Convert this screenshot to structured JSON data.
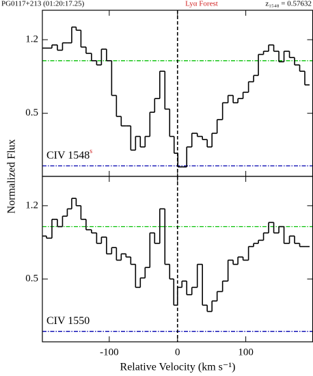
{
  "figure": {
    "title_left": "PG0117+213 (01:20:17.25)",
    "title_center": "Lyα Forest",
    "title_right": "z₁₅₄₈ = 0.57632",
    "ylabel": "Normalized Flux"
  },
  "chart_data": [
    {
      "type": "step",
      "label": "CIV 1548",
      "label_flag": "s",
      "color": "#000000",
      "xlim": [
        -198,
        198
      ],
      "ylim": [
        -0.1,
        1.48
      ],
      "xticks": [
        -100,
        0,
        100
      ],
      "yticks": [
        0.5,
        1.2
      ],
      "marker_x": 0,
      "reference_lines": [
        {
          "value": 1.0,
          "color": "#00c000"
        },
        {
          "value": 0,
          "color": "#0000b0"
        }
      ],
      "x": [
        -196,
        -188,
        -180,
        -172,
        -165,
        -158,
        -152,
        -145,
        -138,
        -130,
        -122,
        -115,
        -108,
        -100,
        -93,
        -86,
        -79,
        -72,
        -65,
        -58,
        -51,
        -44,
        -37,
        -30,
        -22,
        -15,
        -8,
        -2,
        3,
        10,
        17,
        25,
        33,
        40,
        47,
        54,
        62,
        70,
        78,
        85,
        92,
        100,
        108,
        115,
        122,
        130,
        137,
        145,
        152,
        160,
        168,
        175,
        183,
        190
      ],
      "values": [
        1.12,
        1.12,
        1.15,
        1.1,
        1.17,
        1.17,
        1.32,
        1.29,
        1.13,
        1.07,
        1.0,
        0.96,
        1.11,
        1.0,
        0.67,
        0.47,
        0.38,
        0.38,
        0.15,
        0.28,
        0.18,
        0.28,
        0.51,
        0.64,
        0.9,
        0.54,
        0.28,
        0.12,
        -0.01,
        -0.01,
        0.18,
        0.31,
        0.28,
        0.25,
        0.18,
        0.31,
        0.44,
        0.6,
        0.67,
        0.6,
        0.64,
        0.7,
        0.8,
        0.86,
        1.06,
        1.09,
        1.15,
        1.09,
        0.99,
        1.09,
        1.03,
        0.96,
        0.9,
        0.77
      ]
    },
    {
      "type": "step",
      "label": "CIV 1550",
      "color": "#000000",
      "xlabel": "Relative Velocity (km s⁻¹)",
      "xlim": [
        -198,
        198
      ],
      "ylim": [
        -0.1,
        1.48
      ],
      "xticks": [
        -100,
        0,
        100
      ],
      "yticks": [
        0.5,
        1.2
      ],
      "marker_x": 0,
      "reference_lines": [
        {
          "value": 1.0,
          "color": "#00c000"
        },
        {
          "value": 0,
          "color": "#0000b0"
        }
      ],
      "x": [
        -196,
        -188,
        -180,
        -172,
        -165,
        -158,
        -152,
        -145,
        -138,
        -130,
        -122,
        -115,
        -108,
        -100,
        -93,
        -86,
        -79,
        -72,
        -65,
        -58,
        -51,
        -44,
        -37,
        -30,
        -22,
        -15,
        -8,
        -3,
        3,
        10,
        17,
        25,
        33,
        40,
        47,
        54,
        62,
        70,
        78,
        85,
        92,
        100,
        108,
        115,
        122,
        130,
        137,
        145,
        152,
        160,
        168,
        175,
        183,
        190
      ],
      "values": [
        0.91,
        0.89,
        1.07,
        1.0,
        1.1,
        1.17,
        1.27,
        1.2,
        1.07,
        0.97,
        0.94,
        0.84,
        0.9,
        0.74,
        0.8,
        0.68,
        0.74,
        0.71,
        0.64,
        0.42,
        0.51,
        0.61,
        0.94,
        0.84,
        1.17,
        0.64,
        0.5,
        0.25,
        0.42,
        0.48,
        0.35,
        0.42,
        0.64,
        0.25,
        0.19,
        0.29,
        0.38,
        0.48,
        0.68,
        0.64,
        0.71,
        0.68,
        0.81,
        0.84,
        0.87,
        0.94,
        1.04,
        0.94,
        1.0,
        0.84,
        0.91,
        0.84,
        0.81,
        0.81
      ]
    }
  ]
}
